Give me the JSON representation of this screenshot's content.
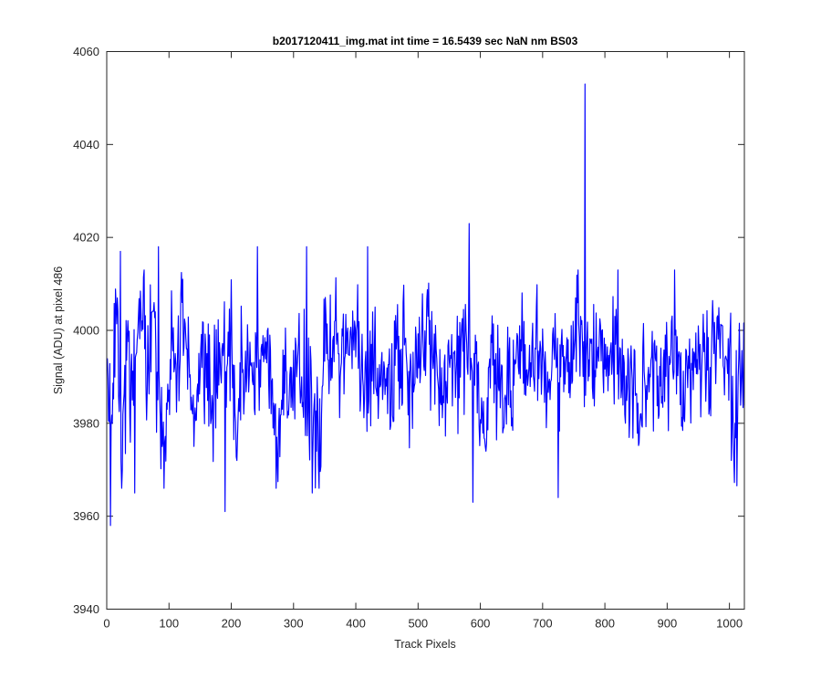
{
  "chart_data": {
    "type": "line",
    "title": "b2017120411_img.mat int time = 16.5439 sec  NaN nm BS03",
    "xlabel": "Track Pixels",
    "ylabel": "Signal (ADU) at pixel 486",
    "xlim": [
      0,
      1024
    ],
    "ylim": [
      3940,
      4060
    ],
    "xticks": [
      0,
      100,
      200,
      300,
      400,
      500,
      600,
      700,
      800,
      900,
      1000
    ],
    "yticks": [
      3940,
      3960,
      3980,
      4000,
      4020,
      4040,
      4060
    ],
    "grid": false,
    "series_color": "#0000ff",
    "series": [
      {
        "x_start": 1,
        "x_step": 8,
        "values": [
          3994,
          3980,
          4007,
          3970,
          3999,
          3985,
          3998,
          4002,
          3987,
          4004,
          3991,
          3975,
          3983,
          3999,
          3990,
          4006,
          3996,
          3983,
          3987,
          3992,
          3995,
          3986,
          3987,
          3996,
          3992,
          3997,
          3972,
          3997,
          3990,
          3993,
          3992,
          3997,
          3993,
          3989,
          3977,
          3985,
          3991,
          3992,
          3990,
          3990,
          3983,
          3987,
          3974,
          3982,
          3995,
          3994,
          3997,
          3993,
          3995,
          3998,
          4000,
          3992,
          3988,
          3997,
          3987,
          3993,
          3988,
          3989,
          3996,
          3996,
          3995,
          3991,
          3998,
          3996,
          3998,
          3992,
          3996,
          3984,
          3989,
          3994,
          3990,
          3998,
          4000,
          3994,
          3995,
          3980,
          3974,
          3999,
          3995,
          3989,
          3985,
          3987,
          3993,
          3998,
          3986,
          3993,
          3996,
          3996,
          3992,
          3989,
          3996,
          3990,
          3993,
          3989,
          4007,
          4003,
          3986,
          3998,
          3990,
          4001,
          3997,
          3996,
          3997,
          3996,
          3980,
          3993,
          3986,
          3982,
          3987,
          3990,
          3994,
          3988,
          3999,
          3993,
          3999,
          3984,
          3987,
          3989,
          3992,
          3997,
          3993,
          3992,
          3997,
          3994,
          3994,
          3999,
          3980,
          3992
        ]
      }
    ],
    "annotations": [
      {
        "x": 6,
        "y": 3958
      },
      {
        "x": 22,
        "y": 4017
      },
      {
        "x": 45,
        "y": 3965
      },
      {
        "x": 83,
        "y": 4018
      },
      {
        "x": 190,
        "y": 3961
      },
      {
        "x": 242,
        "y": 4018
      },
      {
        "x": 321,
        "y": 4018
      },
      {
        "x": 330,
        "y": 3965
      },
      {
        "x": 419,
        "y": 4018
      },
      {
        "x": 582,
        "y": 4023
      },
      {
        "x": 588,
        "y": 3963
      },
      {
        "x": 725,
        "y": 3964
      },
      {
        "x": 768,
        "y": 4053
      },
      {
        "x": 1003,
        "y": 3972
      }
    ]
  }
}
